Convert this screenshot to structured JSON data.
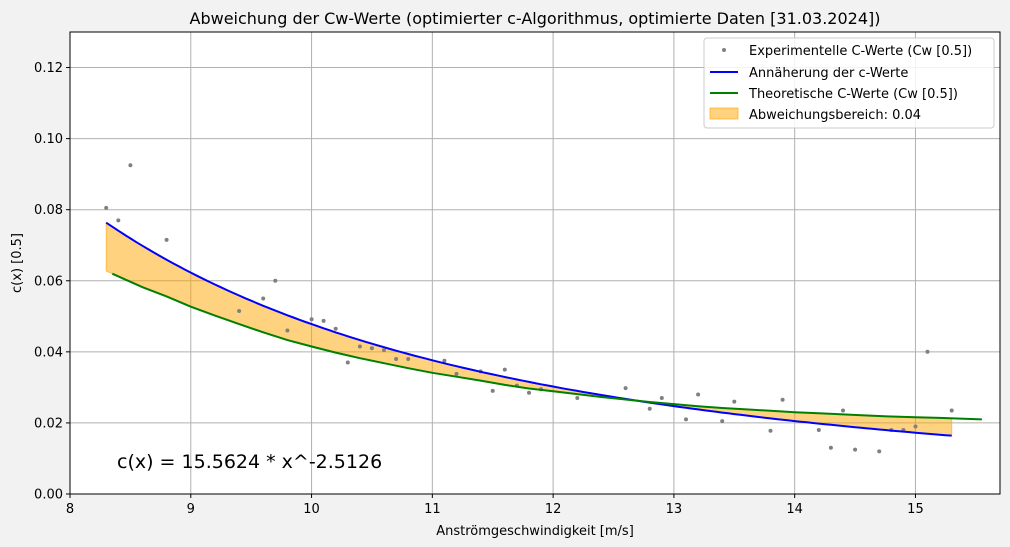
{
  "chart_data": {
    "type": "scatter",
    "title": "Abweichung der Cw-Werte (optimierter c-Algorithmus, optimierte Daten [31.03.2024])",
    "xlabel": "Anströmgeschwindigkeit [m/s]",
    "ylabel": "c(x) [0.5]",
    "xlim": [
      8,
      15.7
    ],
    "ylim": [
      0,
      0.13
    ],
    "xticks": [
      8,
      9,
      10,
      11,
      12,
      13,
      14,
      15
    ],
    "yticks": [
      0.0,
      0.02,
      0.04,
      0.06,
      0.08,
      0.1,
      0.12
    ],
    "ytick_labels": [
      "0.00",
      "0.02",
      "0.04",
      "0.06",
      "0.08",
      "0.10",
      "0.12"
    ],
    "grid": true,
    "legend_position": "top-right",
    "annotation": "c(x) = 15.5624 * x^-2.5126",
    "fit_curve": {
      "name": "Annäherung der c-Werte",
      "coefficient": 15.5624,
      "exponent": -2.5126,
      "x_range": [
        8.3,
        15.3
      ],
      "color": "#0000ff"
    },
    "theory_curve": {
      "name": "Theoretische C-Werte (Cw [0.5])",
      "x": [
        8.35,
        8.6,
        8.8,
        9.0,
        9.2,
        9.4,
        9.6,
        9.8,
        10.0,
        10.2,
        10.4,
        10.6,
        10.8,
        11.0,
        11.2,
        11.4,
        11.6,
        11.8,
        12.0,
        12.2,
        12.4,
        12.6,
        12.8,
        13.0,
        13.2,
        13.4,
        13.6,
        13.8,
        14.0,
        14.2,
        14.4,
        14.6,
        14.8,
        15.0,
        15.2,
        15.4,
        15.55
      ],
      "y": [
        0.062,
        0.0582,
        0.0556,
        0.0527,
        0.0502,
        0.0478,
        0.0455,
        0.0433,
        0.0415,
        0.0398,
        0.0382,
        0.0368,
        0.0354,
        0.0341,
        0.033,
        0.0319,
        0.0307,
        0.0297,
        0.0289,
        0.0281,
        0.0273,
        0.0266,
        0.0259,
        0.0253,
        0.0247,
        0.0242,
        0.0238,
        0.0234,
        0.023,
        0.0227,
        0.0224,
        0.0221,
        0.0218,
        0.0216,
        0.0214,
        0.0212,
        0.021
      ],
      "color": "#008000"
    },
    "deviation_area": {
      "name": "Abweichungsbereich: 0.04",
      "x_range": [
        8.3,
        15.3
      ],
      "color": "#ffa500",
      "opacity": 0.5
    },
    "scatter": {
      "name": "Experimentelle C-Werte (Cw [0.5])",
      "color": "#808080",
      "points": [
        [
          8.3,
          0.0805
        ],
        [
          8.4,
          0.077
        ],
        [
          8.5,
          0.0925
        ],
        [
          8.8,
          0.0715
        ],
        [
          9.4,
          0.0515
        ],
        [
          9.6,
          0.055
        ],
        [
          9.7,
          0.06
        ],
        [
          9.8,
          0.046
        ],
        [
          10.0,
          0.0492
        ],
        [
          10.1,
          0.0487
        ],
        [
          10.2,
          0.0465
        ],
        [
          10.3,
          0.037
        ],
        [
          10.4,
          0.0415
        ],
        [
          10.5,
          0.041
        ],
        [
          10.6,
          0.0405
        ],
        [
          10.7,
          0.038
        ],
        [
          10.8,
          0.038
        ],
        [
          11.1,
          0.0375
        ],
        [
          11.2,
          0.0338
        ],
        [
          11.4,
          0.0345
        ],
        [
          11.5,
          0.029
        ],
        [
          11.6,
          0.035
        ],
        [
          11.7,
          0.0305
        ],
        [
          11.8,
          0.0285
        ],
        [
          11.9,
          0.0295
        ],
        [
          12.2,
          0.027
        ],
        [
          12.6,
          0.0298
        ],
        [
          12.8,
          0.024
        ],
        [
          12.9,
          0.027
        ],
        [
          13.0,
          0.025
        ],
        [
          13.1,
          0.021
        ],
        [
          13.2,
          0.028
        ],
        [
          13.4,
          0.0205
        ],
        [
          13.5,
          0.026
        ],
        [
          13.8,
          0.0178
        ],
        [
          13.9,
          0.0265
        ],
        [
          14.2,
          0.018
        ],
        [
          14.3,
          0.013
        ],
        [
          14.4,
          0.0235
        ],
        [
          14.5,
          0.0125
        ],
        [
          14.7,
          0.012
        ],
        [
          14.8,
          0.018
        ],
        [
          14.9,
          0.018
        ],
        [
          15.0,
          0.019
        ],
        [
          15.1,
          0.04
        ],
        [
          15.3,
          0.0235
        ]
      ]
    }
  }
}
